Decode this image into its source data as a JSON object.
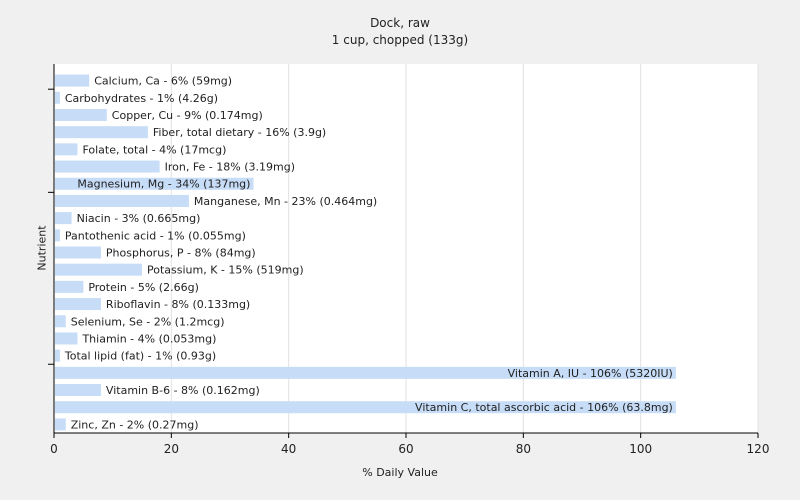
{
  "chart_data": {
    "type": "bar",
    "orientation": "horizontal",
    "title": "Dock, raw",
    "subtitle": "1 cup, chopped (133g)",
    "xlabel": "% Daily Value",
    "ylabel": "Nutrient",
    "xlim": [
      0,
      120
    ],
    "xticks": [
      0,
      20,
      40,
      60,
      80,
      100,
      120
    ],
    "grid": true,
    "bar_color": "#c6dcf7",
    "categories": [
      "Calcium, Ca",
      "Carbohydrates",
      "Copper, Cu",
      "Fiber, total dietary",
      "Folate, total",
      "Iron, Fe",
      "Magnesium, Mg",
      "Manganese, Mn",
      "Niacin",
      "Pantothenic acid",
      "Phosphorus, P",
      "Potassium, K",
      "Protein",
      "Riboflavin",
      "Selenium, Se",
      "Thiamin",
      "Total lipid (fat)",
      "Vitamin A, IU",
      "Vitamin B-6",
      "Vitamin C, total ascorbic acid",
      "Zinc, Zn"
    ],
    "values": [
      6,
      1,
      9,
      16,
      4,
      18,
      34,
      23,
      3,
      1,
      8,
      15,
      5,
      8,
      2,
      4,
      1,
      106,
      8,
      106,
      2
    ],
    "bar_labels": [
      "Calcium, Ca - 6% (59mg)",
      "Carbohydrates - 1% (4.26g)",
      "Copper, Cu - 9% (0.174mg)",
      "Fiber, total dietary - 16% (3.9g)",
      "Folate, total - 4% (17mcg)",
      "Iron, Fe - 18% (3.19mg)",
      "Magnesium, Mg - 34% (137mg)",
      "Manganese, Mn - 23% (0.464mg)",
      "Niacin - 3% (0.665mg)",
      "Pantothenic acid - 1% (0.055mg)",
      "Phosphorus, P - 8% (84mg)",
      "Potassium, K - 15% (519mg)",
      "Protein - 5% (2.66g)",
      "Riboflavin - 8% (0.133mg)",
      "Selenium, Se - 2% (1.2mcg)",
      "Thiamin - 4% (0.053mg)",
      "Total lipid (fat) - 1% (0.93g)",
      "Vitamin A, IU - 106% (5320IU)",
      "Vitamin B-6 - 8% (0.162mg)",
      "Vitamin C, total ascorbic acid - 106% (63.8mg)",
      "Zinc, Zn - 2% (0.27mg)"
    ]
  }
}
